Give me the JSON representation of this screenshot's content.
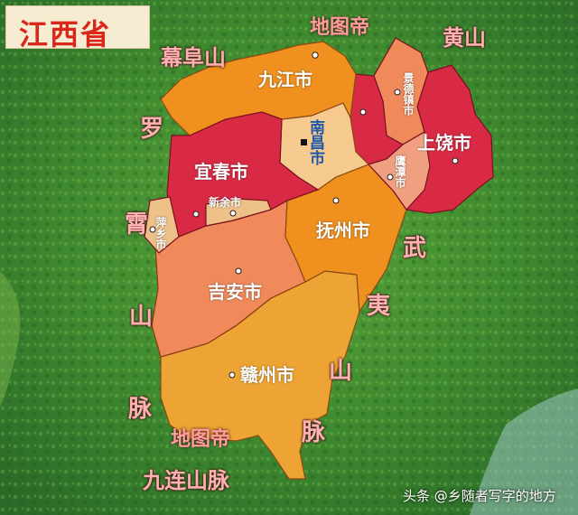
{
  "title": "江西省",
  "colors": {
    "terrain": "#2f7a2a",
    "orange": "#f0901e",
    "crimson": "#d92a45",
    "salmon": "#f08a5a",
    "peach": "#f6c98e",
    "tan": "#edc188",
    "gold": "#eda434",
    "title_text": "#d9271b",
    "mountain_text": "#ffb0b0"
  },
  "cities": {
    "jiujiang": "九江市",
    "nanchang": "南昌市",
    "jingdezhen": "景德镇市",
    "shangrao": "上饶市",
    "yichun": "宜春市",
    "yingtan": "鹰潭市",
    "xinyu": "新余市",
    "pingxiang": "萍乡市",
    "fuzhou": "抚州市",
    "jian": "吉安市",
    "ganzhou": "赣州市"
  },
  "mountains": {
    "mufu": "幕阜山",
    "huangshan": "黄山",
    "luoxiao_1": "罗",
    "luoxiao_2": "霄",
    "luoxiao_3": "山",
    "luoxiao_4": "脉",
    "wuyi_1": "武",
    "wuyi_2": "夷",
    "wuyi_3": "山",
    "wuyi_4": "脉",
    "jiulian": "九连山脉"
  },
  "annotations": {
    "ditudi_top": "地图帝",
    "ditudi_bottom": "地图帝"
  },
  "watermark": "头条 @乡随者写字的地方"
}
